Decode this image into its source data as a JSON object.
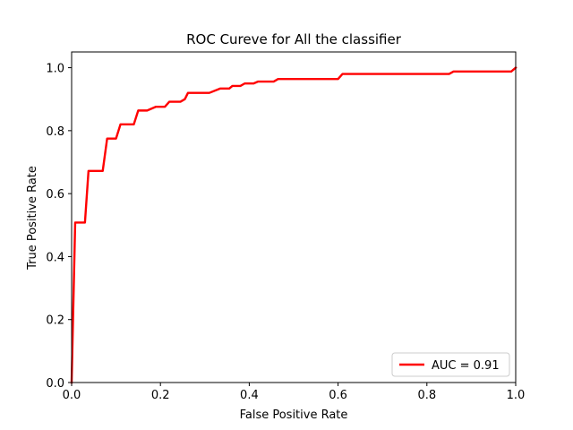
{
  "chart_data": {
    "type": "line",
    "title": "ROC Cureve for All the classifier",
    "xlabel": "False Positive Rate",
    "ylabel": "True Positive Rate",
    "xlim": [
      0,
      1
    ],
    "ylim": [
      0,
      1.05
    ],
    "x_ticks": [
      0,
      0.2,
      0.4,
      0.6,
      0.8,
      1.0
    ],
    "x_tick_labels": [
      "0.0",
      "0.2",
      "0.4",
      "0.6",
      "0.8",
      "1.0"
    ],
    "y_ticks": [
      0,
      0.2,
      0.4,
      0.6,
      0.8,
      1.0
    ],
    "y_tick_labels": [
      "0.0",
      "0.2",
      "0.4",
      "0.6",
      "0.8",
      "1.0"
    ],
    "grid": false,
    "legend_position": "lower-right",
    "series": [
      {
        "name": "AUC = 0.91",
        "color": "#ff0000",
        "points": [
          [
            0.0,
            0.0
          ],
          [
            0.008,
            0.508
          ],
          [
            0.03,
            0.508
          ],
          [
            0.038,
            0.672
          ],
          [
            0.07,
            0.672
          ],
          [
            0.08,
            0.775
          ],
          [
            0.1,
            0.775
          ],
          [
            0.11,
            0.82
          ],
          [
            0.14,
            0.82
          ],
          [
            0.15,
            0.864
          ],
          [
            0.17,
            0.864
          ],
          [
            0.19,
            0.876
          ],
          [
            0.21,
            0.876
          ],
          [
            0.22,
            0.892
          ],
          [
            0.245,
            0.892
          ],
          [
            0.255,
            0.9
          ],
          [
            0.262,
            0.92
          ],
          [
            0.31,
            0.92
          ],
          [
            0.335,
            0.934
          ],
          [
            0.355,
            0.934
          ],
          [
            0.362,
            0.942
          ],
          [
            0.38,
            0.942
          ],
          [
            0.39,
            0.95
          ],
          [
            0.41,
            0.95
          ],
          [
            0.42,
            0.956
          ],
          [
            0.455,
            0.956
          ],
          [
            0.465,
            0.964
          ],
          [
            0.6,
            0.964
          ],
          [
            0.61,
            0.98
          ],
          [
            0.85,
            0.98
          ],
          [
            0.86,
            0.988
          ],
          [
            0.99,
            0.988
          ],
          [
            1.0,
            1.0
          ]
        ]
      }
    ]
  }
}
